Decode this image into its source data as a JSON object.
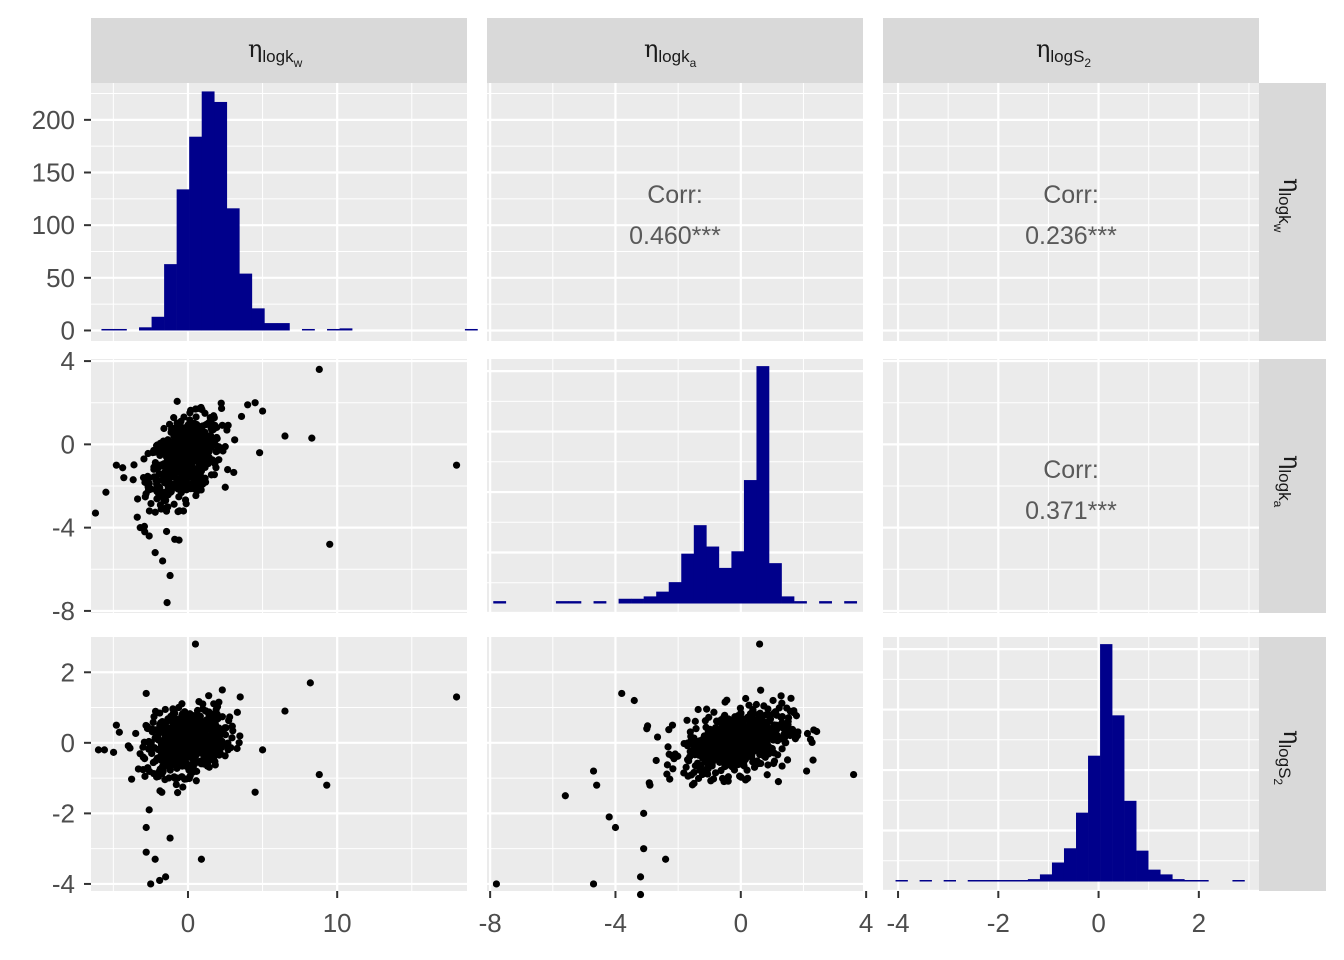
{
  "colors": {
    "bar": "#00008b",
    "point": "#000000",
    "panel": "#ebebeb",
    "strip": "#d9d9d9"
  },
  "variables": [
    {
      "key": "logkw",
      "greek": "η",
      "base": "logk",
      "sub": "w"
    },
    {
      "key": "logka",
      "greek": "η",
      "base": "logk",
      "sub": "a"
    },
    {
      "key": "logS2",
      "greek": "η",
      "base": "logS",
      "sub": "2"
    }
  ],
  "correlations": {
    "label": "Corr:",
    "logkw_logka": "0.460***",
    "logkw_logS2": "0.236***",
    "logka_logS2": "0.371***"
  },
  "axes": {
    "logkw": {
      "range": [
        -6.5,
        18.7
      ],
      "ticks": [
        0,
        10
      ],
      "tick_labels": [
        "0",
        "10"
      ],
      "minor": [
        -5,
        5,
        15
      ]
    },
    "logka": {
      "range": [
        -8.1,
        3.9
      ],
      "ticks": [
        -8,
        -4,
        0,
        4
      ],
      "tick_labels": [
        "-8",
        "-4",
        "0",
        "4"
      ],
      "minor": [
        -6,
        -2,
        2
      ]
    },
    "logS2": {
      "range": [
        -4.3,
        3.2
      ],
      "ticks": [
        -4,
        -2,
        0,
        2
      ],
      "tick_labels": [
        "-4",
        "-2",
        "0",
        "2"
      ],
      "minor": [
        -3,
        -1,
        1,
        3
      ]
    },
    "count": {
      "range": [
        -10,
        235
      ],
      "ticks": [
        0,
        50,
        100,
        150,
        200
      ],
      "tick_labels": [
        "0",
        "50",
        "100",
        "150",
        "200"
      ],
      "minor": [
        25,
        75,
        125,
        175,
        225
      ]
    },
    "logka_y": {
      "range": [
        -8.1,
        4.1
      ],
      "ticks": [
        -8,
        -4,
        0,
        4
      ],
      "tick_labels": [
        "-8",
        "-4",
        "0",
        "4"
      ],
      "minor": [
        -6,
        -2,
        2
      ]
    },
    "logS2_y": {
      "range": [
        -4.2,
        3.0
      ],
      "ticks": [
        -4,
        -2,
        0,
        2
      ],
      "tick_labels": [
        "-4",
        "-2",
        "0",
        "2"
      ],
      "minor": [
        -3,
        -1,
        1,
        3
      ]
    }
  },
  "chart_data": [
    {
      "type": "bar",
      "panel": "logkw-histogram",
      "xlabel": "",
      "ylabel": "",
      "bin_start": -5.8,
      "bin_width": 0.84,
      "values": [
        1,
        1,
        0,
        3,
        13,
        63,
        134,
        184,
        227,
        217,
        116,
        54,
        21,
        7,
        7,
        0,
        1,
        0,
        1,
        2,
        0,
        0,
        0,
        0,
        0,
        0,
        0,
        0,
        0,
        1
      ],
      "ylim": [
        0,
        230
      ]
    },
    {
      "type": "bar",
      "panel": "logka-histogram",
      "xlabel": "",
      "ylabel": "",
      "bin_start": -7.9,
      "bin_width": 0.4,
      "values": [
        0.01,
        0,
        0,
        0,
        0,
        0.01,
        0.01,
        0,
        0.01,
        0,
        0.02,
        0.02,
        0.03,
        0.05,
        0.09,
        0.21,
        0.33,
        0.24,
        0.15,
        0.22,
        0.52,
        1.0,
        0.17,
        0.03,
        0.01,
        0,
        0.01,
        0,
        0.01,
        0
      ],
      "ylim": [
        0,
        1
      ]
    },
    {
      "type": "bar",
      "panel": "logS2-histogram",
      "xlabel": "",
      "ylabel": "",
      "bin_start": -4.05,
      "bin_width": 0.24,
      "values": [
        0.005,
        0,
        0.003,
        0,
        0.003,
        0,
        0.003,
        0.003,
        0.003,
        0.003,
        0.005,
        0.01,
        0.03,
        0.08,
        0.14,
        0.29,
        0.53,
        1.0,
        0.7,
        0.34,
        0.13,
        0.05,
        0.03,
        0.01,
        0.005,
        0.003,
        0,
        0,
        0.003,
        0
      ],
      "ylim": [
        0,
        1
      ]
    },
    {
      "type": "scatter",
      "panel": "logka-vs-logkw",
      "xlabel": "",
      "ylabel": "",
      "outliers": [
        [
          -6.2,
          -3.3
        ],
        [
          -5.5,
          -2.3
        ],
        [
          -4.3,
          -1.6
        ],
        [
          -4.8,
          -1.0
        ],
        [
          -3.4,
          -3.5
        ],
        [
          -3.2,
          -4.0
        ],
        [
          -2.6,
          -4.4
        ],
        [
          -2.2,
          -5.2
        ],
        [
          -1.7,
          -5.6
        ],
        [
          -1.2,
          -6.3
        ],
        [
          -1.4,
          -7.6
        ],
        [
          -0.6,
          -4.6
        ],
        [
          -2.9,
          -4.2
        ],
        [
          -0.3,
          -3.2
        ],
        [
          4.5,
          2.0
        ],
        [
          5.0,
          1.6
        ],
        [
          4.0,
          1.9
        ],
        [
          6.5,
          0.4
        ],
        [
          8.3,
          0.3
        ],
        [
          8.8,
          3.6
        ],
        [
          9.5,
          -4.8
        ],
        [
          18.0,
          -1.0
        ],
        [
          4.8,
          -0.4
        ]
      ],
      "cloud": {
        "n": 620,
        "x_center": -0.2,
        "x_sd": 1.2,
        "y_center": -0.7,
        "y_sd": 0.9,
        "slope": 0.35
      }
    },
    {
      "type": "scatter",
      "panel": "logS2-vs-logkw",
      "xlabel": "",
      "ylabel": "",
      "outliers": [
        [
          -6.0,
          -0.2
        ],
        [
          -5.6,
          -0.2
        ],
        [
          -4.8,
          0.5
        ],
        [
          -4.6,
          0.3
        ],
        [
          -2.8,
          1.4
        ],
        [
          0.5,
          2.8
        ],
        [
          -2.6,
          -1.9
        ],
        [
          -2.8,
          -2.4
        ],
        [
          -2.8,
          -3.1
        ],
        [
          -2.2,
          -3.3
        ],
        [
          -1.2,
          -2.7
        ],
        [
          -2.5,
          -4.0
        ],
        [
          -1.9,
          -3.9
        ],
        [
          -1.5,
          -3.8
        ],
        [
          0.9,
          -3.3
        ],
        [
          2.3,
          1.5
        ],
        [
          3.5,
          1.3
        ],
        [
          6.5,
          0.9
        ],
        [
          8.2,
          1.7
        ],
        [
          8.8,
          -0.9
        ],
        [
          9.3,
          -1.2
        ],
        [
          18.0,
          1.3
        ],
        [
          4.5,
          -1.4
        ],
        [
          5.0,
          -0.2
        ]
      ],
      "cloud": {
        "n": 620,
        "x_center": -0.1,
        "x_sd": 1.3,
        "y_center": 0.05,
        "y_sd": 0.45,
        "slope": 0.08
      }
    },
    {
      "type": "scatter",
      "panel": "logS2-vs-logka",
      "xlabel": "",
      "ylabel": "",
      "outliers": [
        [
          -7.8,
          -4.0
        ],
        [
          -4.7,
          -4.0
        ],
        [
          -5.6,
          -1.5
        ],
        [
          -4.7,
          -0.8
        ],
        [
          -4.6,
          -1.2
        ],
        [
          -4.2,
          -2.1
        ],
        [
          -4.0,
          -2.4
        ],
        [
          -3.1,
          -3.0
        ],
        [
          -3.2,
          -3.8
        ],
        [
          -3.2,
          -4.3
        ],
        [
          -2.4,
          -3.3
        ],
        [
          -3.1,
          -2.0
        ],
        [
          -2.9,
          -1.2
        ],
        [
          -3.0,
          0.4
        ],
        [
          -3.8,
          1.4
        ],
        [
          -3.4,
          1.2
        ],
        [
          -2.7,
          -0.5
        ],
        [
          0.6,
          2.8
        ],
        [
          3.6,
          -0.9
        ],
        [
          2.1,
          -0.8
        ],
        [
          1.2,
          -1.1
        ]
      ],
      "cloud": {
        "n": 620,
        "x_center": -0.1,
        "x_sd": 0.85,
        "y_center": 0.05,
        "y_sd": 0.45,
        "slope": 0.18
      }
    }
  ]
}
